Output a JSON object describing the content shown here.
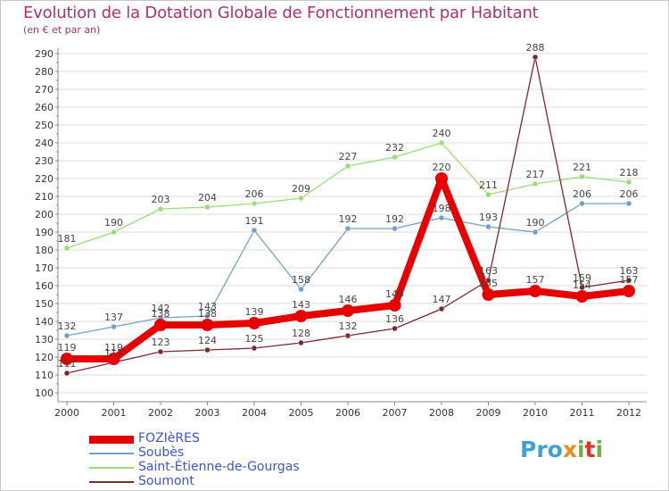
{
  "title": "Evolution de la Dotation Globale de Fonctionnement par Habitant",
  "subtitle": "(en € et par an)",
  "logo": {
    "p1": "Pro",
    "p2": "x",
    "p3": "i",
    "p4": "t",
    "p5": "i"
  },
  "colors": {
    "fozieres": "#e60000",
    "soubes": "#6fa0cc",
    "saint_etienne": "#99dd77",
    "soumont": "#7a2a2a",
    "axis": "#888888",
    "grid": "#dddddd",
    "label": "#333333",
    "title": "#b0306a"
  },
  "chart_data": {
    "type": "line",
    "title": "Evolution de la Dotation Globale de Fonctionnement par Habitant",
    "subtitle": "(en € et par an)",
    "xlabel": "",
    "ylabel": "",
    "ylim": [
      100,
      290
    ],
    "yticks": [
      100,
      110,
      120,
      130,
      140,
      150,
      160,
      170,
      180,
      190,
      200,
      210,
      220,
      230,
      240,
      250,
      260,
      270,
      280,
      290
    ],
    "categories": [
      "2000",
      "2001",
      "2002",
      "2003",
      "2004",
      "2005",
      "2006",
      "2007",
      "2008",
      "2009",
      "2010",
      "2011",
      "2012"
    ],
    "series": [
      {
        "name": "FOZIèRES",
        "key": "fozieres",
        "values": [
          119,
          119,
          138,
          138,
          139,
          143,
          146,
          149,
          220,
          155,
          157,
          154,
          157
        ],
        "labels": [
          "119",
          "119",
          "138",
          "138",
          "139",
          "143",
          "146",
          "149",
          "220",
          "155",
          "157",
          "154",
          "157"
        ]
      },
      {
        "name": "Soubès",
        "key": "soubes",
        "values": [
          132,
          137,
          142,
          143,
          191,
          158,
          192,
          192,
          198,
          193,
          190,
          206,
          206
        ],
        "labels": [
          "132",
          "137",
          "142",
          "143",
          "191",
          "158",
          "192",
          "192",
          "198",
          "193",
          "190",
          "206",
          "206"
        ]
      },
      {
        "name": "Saint-Étienne-de-Gourgas",
        "key": "saint_etienne",
        "values": [
          181,
          190,
          203,
          204,
          206,
          209,
          227,
          232,
          240,
          211,
          217,
          221,
          218
        ],
        "labels": [
          "181",
          "190",
          "203",
          "204",
          "206",
          "209",
          "227",
          "232",
          "240",
          "211",
          "217",
          "221",
          "218"
        ]
      },
      {
        "name": "Soumont",
        "key": "soumont",
        "values": [
          111,
          117,
          123,
          124,
          125,
          128,
          132,
          136,
          147,
          163,
          288,
          159,
          163
        ],
        "labels": [
          "111",
          "117",
          "123",
          "124",
          "125",
          "128",
          "132",
          "136",
          "147",
          "163",
          "288",
          "159",
          "163"
        ]
      }
    ],
    "legend": "bottom-left"
  }
}
